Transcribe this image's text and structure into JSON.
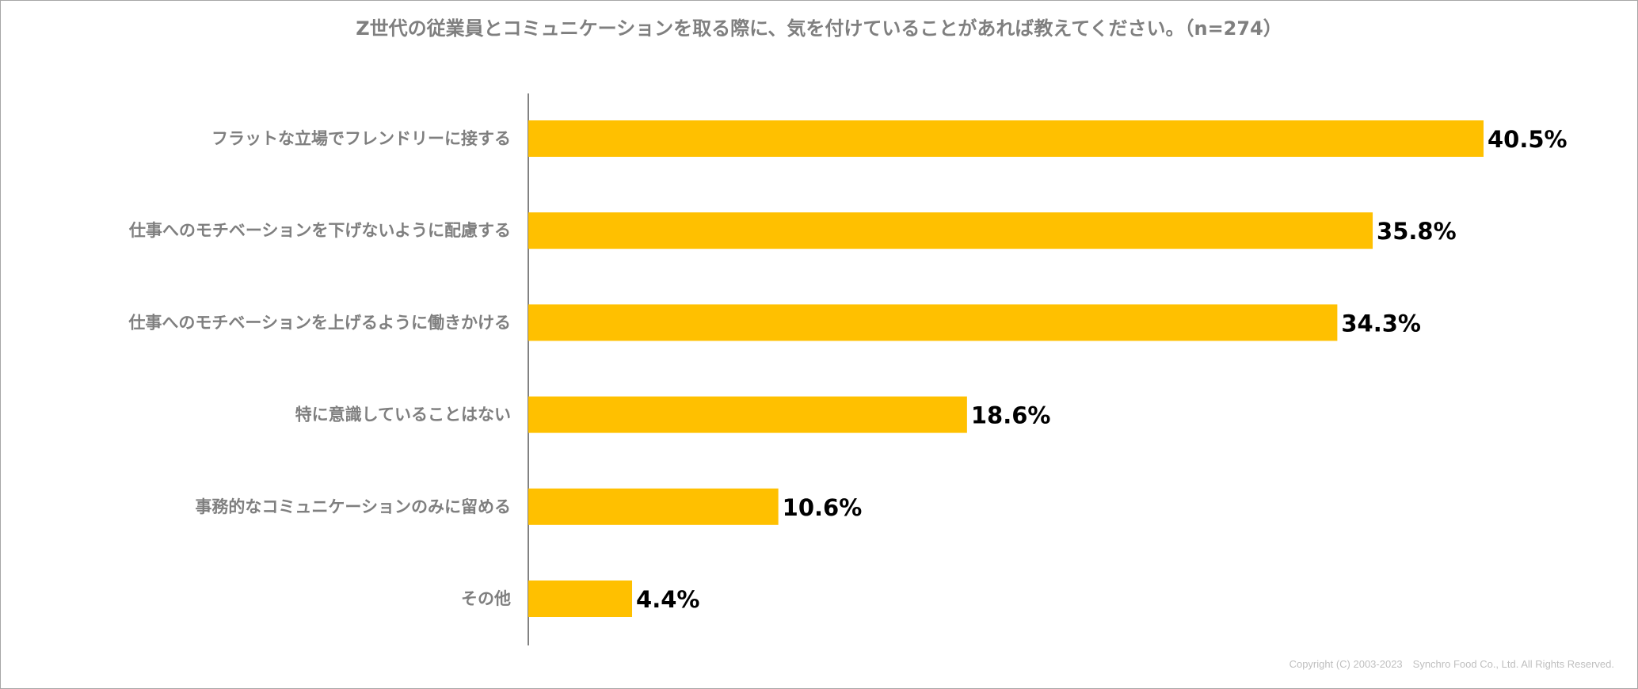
{
  "chart_data": {
    "type": "bar",
    "orientation": "horizontal",
    "title": "Z世代の従業員とコミュニケーションを取る際に、気を付けていることがあれば教えてください。（n=274）",
    "categories": [
      "フラットな立場でフレンドリーに接する",
      "仕事へのモチベーションを下げないように配慮する",
      "仕事へのモチベーションを上げるように働きかける",
      "特に意識していることはない",
      "事務的なコミュニケーションのみに留める",
      "その他"
    ],
    "values": [
      40.5,
      35.8,
      34.3,
      18.6,
      10.6,
      4.4
    ],
    "value_labels": [
      "40.5%",
      "35.8%",
      "34.3%",
      "18.6%",
      "10.6%",
      "4.4%"
    ],
    "unit": "%",
    "xlim": [
      0,
      45
    ],
    "bar_color": "#FFC000",
    "grid": false,
    "legend": "none"
  },
  "footer": {
    "copyright": "Copyright (C) 2003-2023　Synchro Food Co., Ltd. All Rights Reserved."
  }
}
